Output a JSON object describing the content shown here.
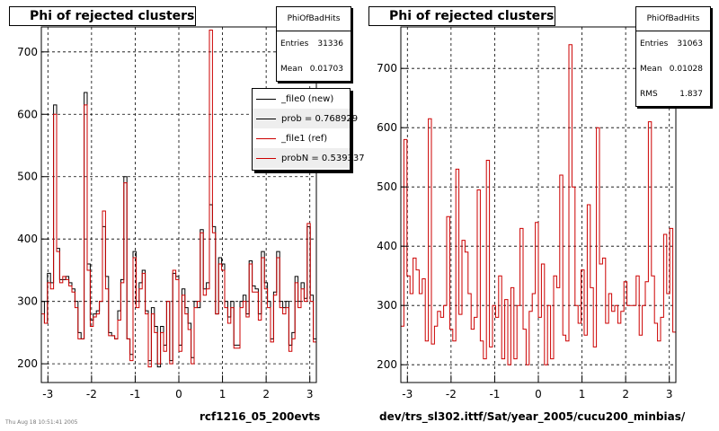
{
  "colors": {
    "new": "#000000",
    "ref": "#cc0000",
    "grid": "#000000",
    "frame": "#000000"
  },
  "left_panel": {
    "title": "Phi of rejected clusters",
    "stats": {
      "name": "PhiOfBadHits",
      "entries_label": "Entries",
      "entries": "31336",
      "mean_label": "Mean",
      "mean": "0.01703"
    },
    "legend": [
      {
        "label": "_file0 (new)",
        "color": "#000000"
      },
      {
        "label": "prob = 0.768929",
        "color": "#000000"
      },
      {
        "label": "_file1 (ref)",
        "color": "#cc0000"
      },
      {
        "label": "probN = 0.539337",
        "color": "#cc0000"
      }
    ],
    "footer": "rcf1216_05_200evts",
    "footer_small": "Thu Aug 18 10:51:41 2005"
  },
  "right_panel": {
    "title": "Phi of rejected clusters",
    "stats": {
      "name": "PhiOfBadHits",
      "entries_label": "Entries",
      "entries": "31063",
      "mean_label": "Mean",
      "mean": "0.01028",
      "rms_label": "RMS",
      "rms": "1.837"
    },
    "footer": "dev/trs_sl302.ittf/Sat/year_2005/cucu200_minbias/"
  },
  "chart_data": [
    {
      "type": "line",
      "title": "Phi of rejected clusters",
      "xlim": [
        -3.15,
        3.15
      ],
      "ylim": [
        170,
        740
      ],
      "x_ticks": [
        -3,
        -2,
        -1,
        0,
        1,
        2,
        3
      ],
      "y_ticks": [
        200,
        300,
        400,
        500,
        600,
        700
      ],
      "grid": true,
      "legend_position": "top-right",
      "series": [
        {
          "name": "_file0 (new)",
          "color": "#000000",
          "values": [
            300,
            265,
            345,
            330,
            615,
            385,
            335,
            335,
            340,
            330,
            320,
            300,
            250,
            240,
            635,
            360,
            270,
            280,
            285,
            300,
            420,
            340,
            250,
            245,
            240,
            285,
            335,
            500,
            240,
            215,
            380,
            300,
            330,
            350,
            285,
            205,
            290,
            260,
            195,
            260,
            230,
            300,
            205,
            345,
            340,
            230,
            320,
            290,
            265,
            210,
            300,
            290,
            415,
            320,
            330,
            455,
            420,
            280,
            370,
            360,
            300,
            275,
            300,
            230,
            230,
            300,
            310,
            280,
            365,
            325,
            320,
            280,
            380,
            330,
            300,
            240,
            315,
            380,
            300,
            290,
            300,
            230,
            250,
            340,
            300,
            330,
            305,
            420,
            310,
            240
          ]
        },
        {
          "name": "_file1 (ref)",
          "color": "#cc0000",
          "values": [
            280,
            265,
            330,
            320,
            600,
            380,
            330,
            340,
            335,
            325,
            315,
            290,
            240,
            240,
            615,
            350,
            260,
            275,
            280,
            300,
            445,
            320,
            245,
            245,
            240,
            270,
            330,
            490,
            240,
            205,
            370,
            290,
            320,
            345,
            280,
            195,
            280,
            250,
            200,
            250,
            220,
            300,
            200,
            350,
            335,
            220,
            310,
            280,
            255,
            200,
            290,
            300,
            410,
            310,
            320,
            735,
            410,
            280,
            360,
            350,
            290,
            265,
            290,
            225,
            225,
            290,
            300,
            275,
            360,
            315,
            315,
            270,
            370,
            320,
            290,
            235,
            310,
            370,
            290,
            280,
            290,
            220,
            240,
            330,
            290,
            320,
            300,
            425,
            300,
            235
          ]
        }
      ]
    },
    {
      "type": "line",
      "title": "Phi of rejected clusters",
      "xlim": [
        -3.15,
        3.15
      ],
      "ylim": [
        170,
        770
      ],
      "x_ticks": [
        -3,
        -2,
        -1,
        0,
        1,
        2,
        3
      ],
      "y_ticks": [
        200,
        300,
        400,
        500,
        600,
        700
      ],
      "grid": true,
      "series": [
        {
          "name": "",
          "color": "#cc0000",
          "values": [
            265,
            580,
            350,
            320,
            380,
            360,
            320,
            345,
            240,
            615,
            235,
            265,
            290,
            280,
            300,
            450,
            260,
            240,
            530,
            285,
            410,
            390,
            320,
            260,
            280,
            495,
            240,
            210,
            545,
            230,
            300,
            280,
            350,
            210,
            310,
            200,
            330,
            210,
            300,
            430,
            260,
            200,
            290,
            320,
            440,
            280,
            370,
            200,
            300,
            210,
            350,
            330,
            520,
            250,
            240,
            740,
            500,
            300,
            270,
            360,
            250,
            470,
            330,
            230,
            600,
            370,
            380,
            270,
            320,
            290,
            300,
            270,
            290,
            340,
            300,
            300,
            300,
            350,
            250,
            300,
            340,
            610,
            350,
            270,
            240,
            280,
            420,
            320,
            430,
            255
          ]
        }
      ]
    }
  ]
}
